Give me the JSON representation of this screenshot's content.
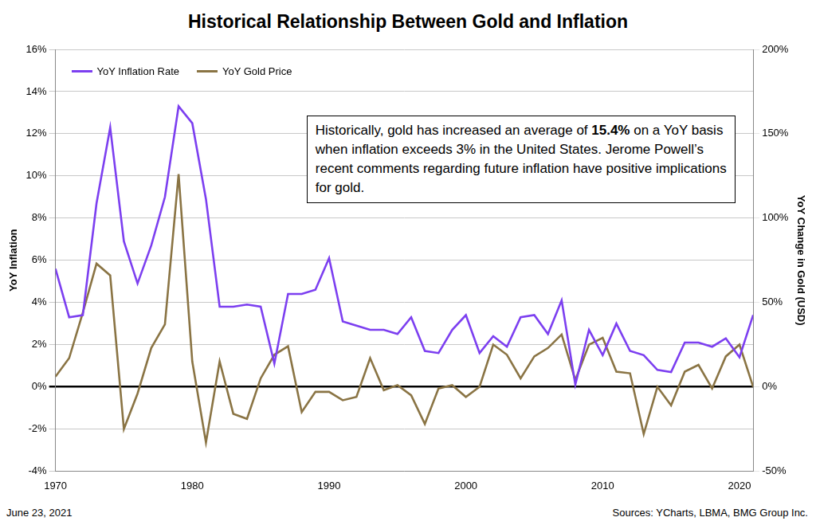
{
  "chart_data": {
    "type": "line",
    "title": "Historical Relationship Between Gold and Inflation",
    "y_label": "YoY Inflation",
    "y2_label": "YoY Change in Gold (USD)",
    "annotation": [
      "Historically, gold has increased an average of ",
      "15.4%",
      " on a YoY basis when inflation exceeds 3% in the United States. Jerome Powell’s recent comments regarding future inflation have positive implications for gold."
    ],
    "date": "June 23, 2021",
    "source": "Sources: YCharts, LBMA, BMG Group Inc.",
    "x": [
      1970,
      1971,
      1972,
      1973,
      1974,
      1975,
      1976,
      1977,
      1978,
      1979,
      1980,
      1981,
      1982,
      1983,
      1984,
      1985,
      1986,
      1987,
      1988,
      1989,
      1990,
      1991,
      1992,
      1993,
      1994,
      1995,
      1996,
      1997,
      1998,
      1999,
      2000,
      2001,
      2002,
      2003,
      2004,
      2005,
      2006,
      2007,
      2008,
      2009,
      2010,
      2011,
      2012,
      2013,
      2014,
      2015,
      2016,
      2017,
      2018,
      2019,
      2020,
      2021
    ],
    "series": [
      {
        "name": "YoY Inflation Rate",
        "color": "#7c3ff0",
        "axis": "y",
        "values": [
          5.6,
          3.3,
          3.4,
          8.7,
          12.3,
          6.9,
          4.9,
          6.7,
          9.0,
          13.3,
          12.5,
          8.9,
          3.8,
          3.8,
          3.9,
          3.8,
          1.1,
          4.4,
          4.4,
          4.6,
          6.1,
          3.1,
          2.9,
          2.7,
          2.7,
          2.5,
          3.3,
          1.7,
          1.6,
          2.7,
          3.4,
          1.6,
          2.4,
          1.9,
          3.3,
          3.4,
          2.5,
          4.1,
          0.1,
          2.7,
          1.5,
          3.0,
          1.7,
          1.5,
          0.8,
          0.7,
          2.1,
          2.1,
          1.9,
          2.3,
          1.4,
          3.4
        ]
      },
      {
        "name": "YoY Gold Price",
        "color": "#8a7444",
        "axis": "y2",
        "values": [
          6,
          17,
          44,
          73,
          66,
          -25,
          -4,
          23,
          37,
          126,
          15,
          -33,
          15,
          -16,
          -19,
          5,
          19,
          24,
          -15,
          -3,
          -3,
          -8,
          -6,
          17,
          -2,
          1,
          -5,
          -22,
          -1,
          1,
          -6,
          0,
          25,
          19,
          5,
          18,
          23,
          31,
          4,
          25,
          29,
          9,
          8,
          -28,
          0,
          -11,
          9,
          13,
          -1,
          18,
          25,
          0
        ]
      }
    ],
    "xlim": [
      1970,
      2021
    ],
    "xticks": [
      1970,
      1980,
      1990,
      2000,
      2010,
      2020
    ],
    "ylim": [
      -4,
      16
    ],
    "yticks": [
      {
        "value": -4,
        "label": "-4%"
      },
      {
        "value": -2,
        "label": "-2%"
      },
      {
        "value": 0,
        "label": "0%"
      },
      {
        "value": 2,
        "label": "2%"
      },
      {
        "value": 4,
        "label": "4%"
      },
      {
        "value": 6,
        "label": "6%"
      },
      {
        "value": 8,
        "label": "8%"
      },
      {
        "value": 10,
        "label": "10%"
      },
      {
        "value": 12,
        "label": "12%"
      },
      {
        "value": 14,
        "label": "14%"
      },
      {
        "value": 16,
        "label": "16%"
      }
    ],
    "y2lim": [
      -50,
      200
    ],
    "y2ticks": [
      {
        "value": -50,
        "label": "-50%"
      },
      {
        "value": 0,
        "label": "0%"
      },
      {
        "value": 50,
        "label": "50%"
      },
      {
        "value": 100,
        "label": "100%"
      },
      {
        "value": 150,
        "label": "150%"
      },
      {
        "value": 200,
        "label": "200%"
      }
    ],
    "grid": true,
    "legend": "top-left"
  }
}
